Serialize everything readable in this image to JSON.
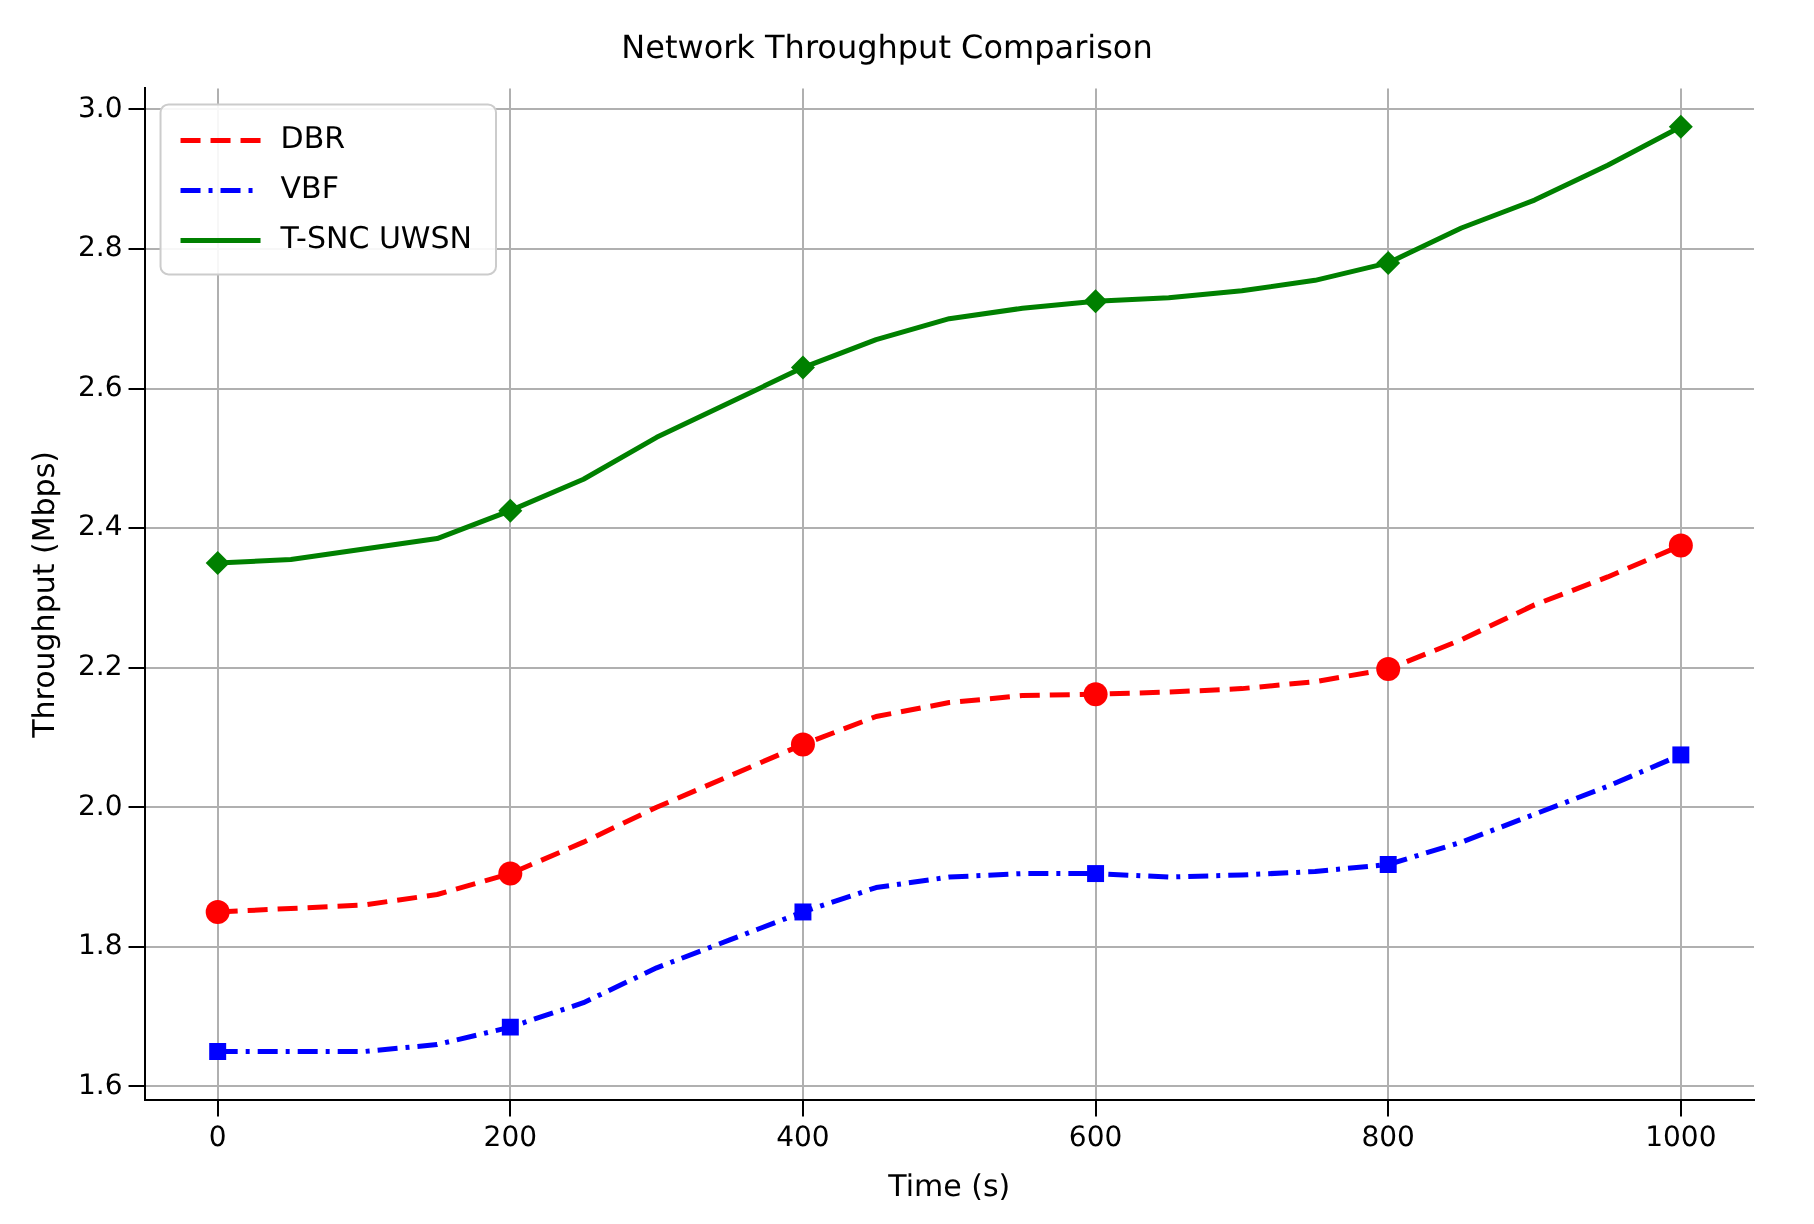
{
  "chart_data": {
    "type": "line",
    "title": "Network Throughput Comparison",
    "xlabel": "Time (s)",
    "ylabel": "Throughput (Mbps)",
    "x": [
      0,
      50,
      100,
      150,
      200,
      250,
      300,
      350,
      400,
      450,
      500,
      550,
      600,
      650,
      700,
      750,
      800,
      850,
      900,
      950,
      1000
    ],
    "series": [
      {
        "name": "DBR",
        "color": "#ff0000",
        "line_style": "dashed",
        "marker": "none",
        "values": [
          1.85,
          1.855,
          1.86,
          1.875,
          1.905,
          1.95,
          2.0,
          2.045,
          2.09,
          2.13,
          2.15,
          2.16,
          2.162,
          2.165,
          2.17,
          2.18,
          2.198,
          2.24,
          2.29,
          2.33,
          2.375
        ]
      },
      {
        "name": "VBF",
        "color": "#0000ff",
        "line_style": "dashdot",
        "marker": "none",
        "values": [
          1.65,
          1.65,
          1.65,
          1.66,
          1.685,
          1.72,
          1.77,
          1.81,
          1.85,
          1.885,
          1.9,
          1.905,
          1.905,
          1.9,
          1.903,
          1.908,
          1.918,
          1.95,
          1.99,
          2.03,
          2.075
        ]
      },
      {
        "name": "T-SNC UWSN",
        "color": "#008000",
        "line_style": "solid",
        "marker": "none",
        "values": [
          2.35,
          2.355,
          2.37,
          2.385,
          2.425,
          2.47,
          2.53,
          2.58,
          2.63,
          2.67,
          2.7,
          2.715,
          2.725,
          2.73,
          2.74,
          2.755,
          2.78,
          2.83,
          2.87,
          2.92,
          2.975
        ]
      },
      {
        "type": "scatter",
        "color": "#ff0000",
        "marker": "circle",
        "x": [
          0,
          200,
          400,
          600,
          800,
          1000
        ],
        "values": [
          1.85,
          1.905,
          2.09,
          2.162,
          2.198,
          2.375
        ]
      },
      {
        "type": "scatter",
        "color": "#0000ff",
        "marker": "square",
        "x": [
          0,
          200,
          400,
          600,
          800,
          1000
        ],
        "values": [
          1.65,
          1.685,
          1.85,
          1.905,
          1.918,
          2.075
        ]
      },
      {
        "type": "scatter",
        "color": "#008000",
        "marker": "diamond",
        "x": [
          0,
          200,
          400,
          600,
          800,
          1000
        ],
        "values": [
          2.35,
          2.425,
          2.63,
          2.725,
          2.78,
          2.975
        ]
      }
    ],
    "xlim": [
      -50,
      1050
    ],
    "xticks": [
      0,
      200,
      400,
      600,
      800,
      1000
    ],
    "ylim": [
      1.58,
      3.03
    ],
    "yticks": [
      {
        "value": 1.6,
        "label": "1.6"
      },
      {
        "value": 1.8,
        "label": "1.8"
      },
      {
        "value": 2.0,
        "label": "2.0"
      },
      {
        "value": 2.2,
        "label": "2.2"
      },
      {
        "value": 2.4,
        "label": "2.4"
      },
      {
        "value": 2.6,
        "label": "2.6"
      },
      {
        "value": 2.8,
        "label": "2.8"
      },
      {
        "value": 3.0,
        "label": "3.0"
      }
    ],
    "grid": true,
    "legend": "top left"
  }
}
